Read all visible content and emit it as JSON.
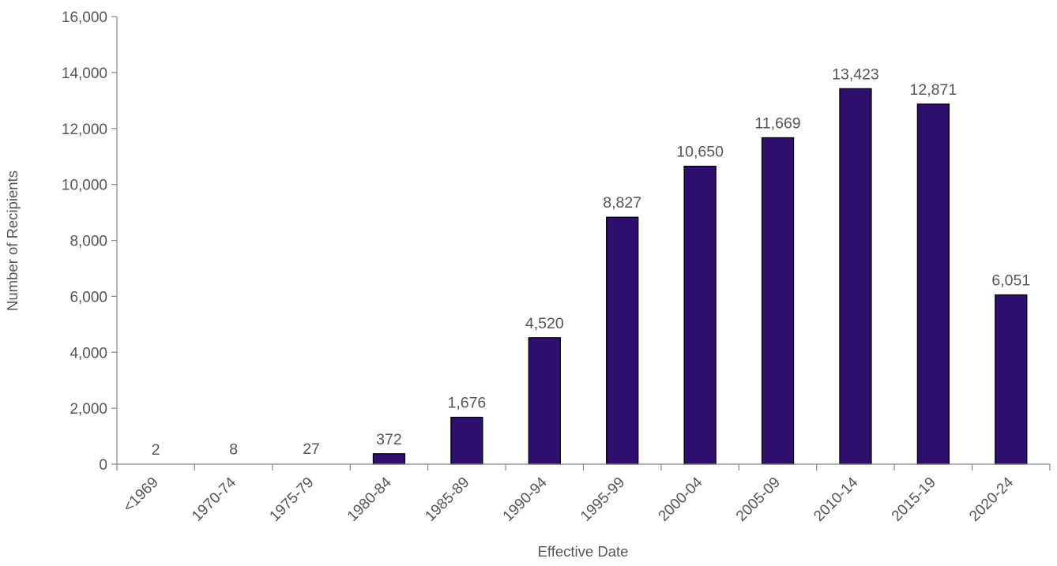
{
  "chart_data": {
    "type": "bar",
    "title": "",
    "xlabel": "Effective Date",
    "ylabel": "Number of Recipients",
    "categories": [
      "<1969",
      "1970-74",
      "1975-79",
      "1980-84",
      "1985-89",
      "1990-94",
      "1995-99",
      "2000-04",
      "2005-09",
      "2010-14",
      "2015-19",
      "2020-24"
    ],
    "values": [
      2,
      8,
      27,
      372,
      1676,
      4520,
      8827,
      10650,
      11669,
      13423,
      12871,
      6051
    ],
    "data_labels": [
      "2",
      "8",
      "27",
      "372",
      "1,676",
      "4,520",
      "8,827",
      "10,650",
      "11,669",
      "13,423",
      "12,871",
      "6,051"
    ],
    "ylim": [
      0,
      16000
    ],
    "yticks": [
      0,
      2000,
      4000,
      6000,
      8000,
      10000,
      12000,
      14000,
      16000
    ],
    "ytick_labels": [
      "0",
      "2,000",
      "4,000",
      "6,000",
      "8,000",
      "10,000",
      "12,000",
      "14,000",
      "16,000"
    ],
    "grid": false,
    "legend": "none",
    "bar_color": "#2e0f6e"
  }
}
